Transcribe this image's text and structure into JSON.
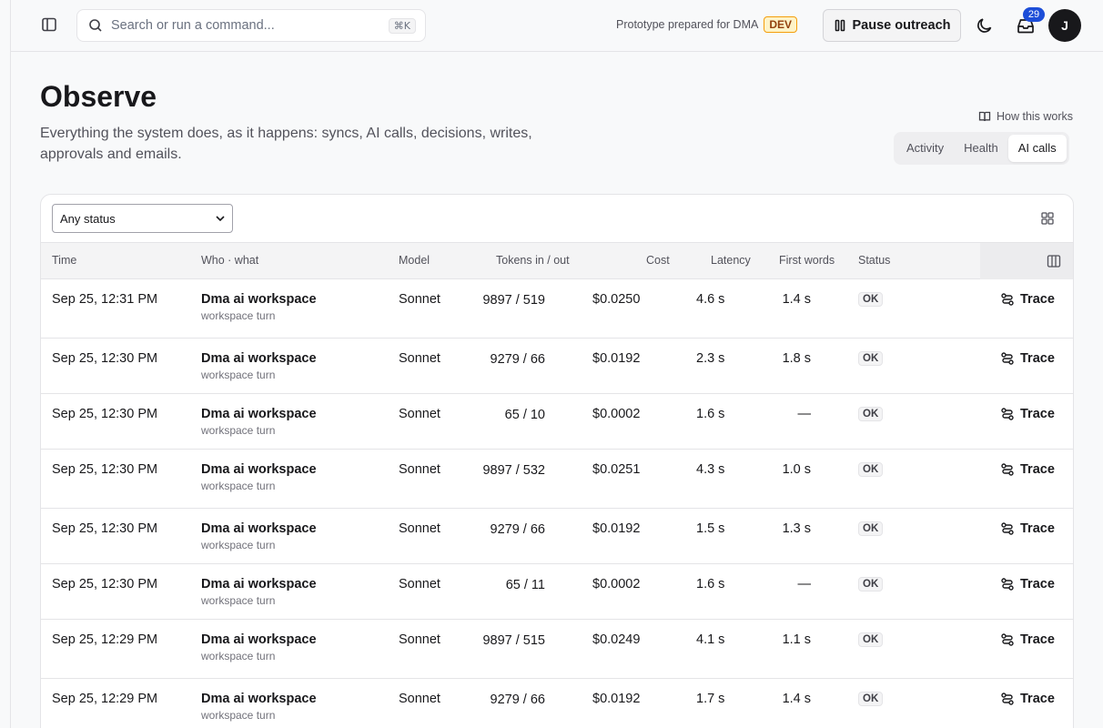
{
  "search": {
    "placeholder": "Search or run a command...",
    "shortcut": "⌘K"
  },
  "header": {
    "prototype_text": "Prototype prepared for DMA",
    "env_badge": "DEV",
    "pause_label": "Pause outreach",
    "inbox_count": "29",
    "avatar_initial": "J"
  },
  "page": {
    "title": "Observe",
    "subtitle": "Everything the system does, as it happens: syncs, AI calls, decisions, writes, approvals and emails.",
    "how_link": "How this works",
    "tabs": [
      {
        "label": "Activity",
        "active": false
      },
      {
        "label": "Health",
        "active": false
      },
      {
        "label": "AI calls",
        "active": true
      }
    ]
  },
  "filters": {
    "status_selected": "Any status"
  },
  "table": {
    "headers": {
      "time": "Time",
      "who": "Who · what",
      "model": "Model",
      "tokens": "Tokens in / out",
      "cost": "Cost",
      "latency": "Latency",
      "first_words": "First words",
      "status": "Status"
    },
    "trace_label": "Trace",
    "rows": [
      {
        "time": "Sep 25, 12:31 PM",
        "who": "Dma ai workspace",
        "what": "workspace turn",
        "model": "Sonnet",
        "tokens": "9897 / 519",
        "cost": "$0.0250",
        "latency": "4.6 s",
        "first_words": "1.4 s",
        "status": "OK"
      },
      {
        "time": "Sep 25, 12:30 PM",
        "who": "Dma ai workspace",
        "what": "workspace turn",
        "model": "Sonnet",
        "tokens": "9279 / 66",
        "cost": "$0.0192",
        "latency": "2.3 s",
        "first_words": "1.8 s",
        "status": "OK"
      },
      {
        "time": "Sep 25, 12:30 PM",
        "who": "Dma ai workspace",
        "what": "workspace turn",
        "model": "Sonnet",
        "tokens": "65 / 10",
        "cost": "$0.0002",
        "latency": "1.6 s",
        "first_words": "—",
        "status": "OK"
      },
      {
        "time": "Sep 25, 12:30 PM",
        "who": "Dma ai workspace",
        "what": "workspace turn",
        "model": "Sonnet",
        "tokens": "9897 / 532",
        "cost": "$0.0251",
        "latency": "4.3 s",
        "first_words": "1.0 s",
        "status": "OK"
      },
      {
        "time": "Sep 25, 12:30 PM",
        "who": "Dma ai workspace",
        "what": "workspace turn",
        "model": "Sonnet",
        "tokens": "9279 / 66",
        "cost": "$0.0192",
        "latency": "1.5 s",
        "first_words": "1.3 s",
        "status": "OK"
      },
      {
        "time": "Sep 25, 12:30 PM",
        "who": "Dma ai workspace",
        "what": "workspace turn",
        "model": "Sonnet",
        "tokens": "65 / 11",
        "cost": "$0.0002",
        "latency": "1.6 s",
        "first_words": "—",
        "status": "OK"
      },
      {
        "time": "Sep 25, 12:29 PM",
        "who": "Dma ai workspace",
        "what": "workspace turn",
        "model": "Sonnet",
        "tokens": "9897 / 515",
        "cost": "$0.0249",
        "latency": "4.1 s",
        "first_words": "1.1 s",
        "status": "OK"
      },
      {
        "time": "Sep 25, 12:29 PM",
        "who": "Dma ai workspace",
        "what": "workspace turn",
        "model": "Sonnet",
        "tokens": "9279 / 66",
        "cost": "$0.0192",
        "latency": "1.7 s",
        "first_words": "1.4 s",
        "status": "OK"
      }
    ]
  }
}
